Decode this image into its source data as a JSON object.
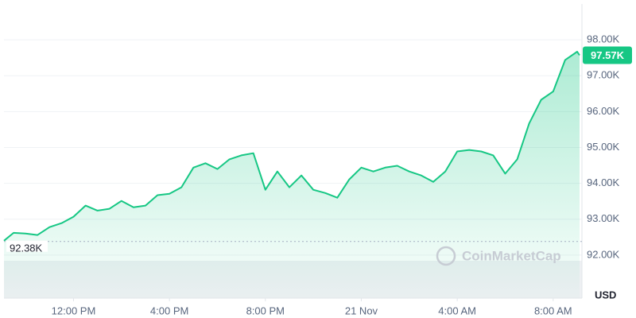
{
  "chart_data": {
    "type": "line",
    "x": [
      9.1,
      9.5,
      10,
      10.5,
      11,
      11.5,
      12,
      12.5,
      13,
      13.5,
      14,
      14.5,
      15,
      15.5,
      16,
      16.5,
      17,
      17.5,
      18,
      18.5,
      19,
      19.5,
      20,
      20.5,
      21,
      21.5,
      22,
      22.5,
      23,
      23.5,
      24,
      24.5,
      25,
      25.5,
      26,
      26.5,
      27,
      27.5,
      28,
      28.5,
      29,
      29.5,
      30,
      30.5,
      31,
      31.5,
      32,
      32.5,
      33,
      33.1
    ],
    "series": [
      {
        "name": "Price",
        "color": "#16c784",
        "values": [
          92400,
          92620,
          92600,
          92560,
          92780,
          92890,
          93070,
          93380,
          93240,
          93290,
          93510,
          93330,
          93380,
          93670,
          93710,
          93890,
          94440,
          94560,
          94400,
          94670,
          94780,
          94840,
          93820,
          94330,
          93890,
          94220,
          93820,
          93730,
          93600,
          94110,
          94440,
          94330,
          94440,
          94490,
          94330,
          94220,
          94040,
          94330,
          94890,
          94930,
          94890,
          94780,
          94270,
          94670,
          95670,
          96330,
          96560,
          97440,
          97670,
          97570
        ]
      }
    ],
    "xlim": [
      9.1,
      33.2
    ],
    "xticks": [
      {
        "value": 12,
        "label": "12:00 PM"
      },
      {
        "value": 16,
        "label": "4:00 PM"
      },
      {
        "value": 20,
        "label": "8:00 PM"
      },
      {
        "value": 24,
        "label": "21 Nov"
      },
      {
        "value": 28,
        "label": "4:00 AM"
      },
      {
        "value": 32,
        "label": "8:00 AM"
      }
    ],
    "ylim": [
      90800,
      99000
    ],
    "yticks": [
      {
        "value": 92000,
        "label": "92.00K"
      },
      {
        "value": 93000,
        "label": "93.00K"
      },
      {
        "value": 94000,
        "label": "94.00K"
      },
      {
        "value": 95000,
        "label": "95.00K"
      },
      {
        "value": 96000,
        "label": "96.00K"
      },
      {
        "value": 97000,
        "label": "97.00K"
      },
      {
        "value": 98000,
        "label": "98.00K"
      }
    ],
    "grid": true,
    "last_price": {
      "value": 97570,
      "label": "97.57K"
    },
    "reference_price": {
      "value": 92380,
      "label": "92.38K"
    },
    "y_unit": "USD",
    "watermark": "CoinMarketCap"
  }
}
